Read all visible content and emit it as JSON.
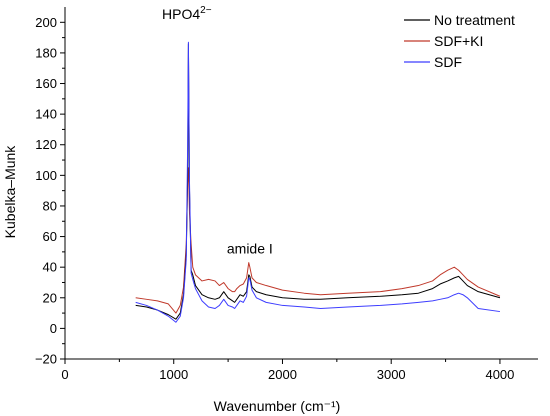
{
  "chart_data": {
    "type": "line",
    "xlabel": "Wavenumber (cm⁻¹)",
    "ylabel": "Kubelka–Munk",
    "xlim": [
      0,
      4350
    ],
    "ylim": [
      -20,
      210
    ],
    "x_ticks": [
      0,
      1000,
      2000,
      3000,
      4000
    ],
    "x_tick_labels": [
      "0",
      "1000",
      "2000",
      "3000",
      "4000"
    ],
    "y_ticks": [
      -20,
      0,
      20,
      40,
      60,
      80,
      100,
      120,
      140,
      160,
      180,
      200
    ],
    "y_tick_labels": [
      "−20",
      "0",
      "20",
      "40",
      "60",
      "80",
      "100",
      "120",
      "140",
      "160",
      "180",
      "200"
    ],
    "grid": false,
    "legend_position": "top-right",
    "annotations": [
      {
        "text": "HPO4",
        "superscript": "2−",
        "x": 1120,
        "y": 202
      },
      {
        "text": "amide I",
        "x": 1700,
        "y": 49
      }
    ],
    "series": [
      {
        "name": "No treatment",
        "color": "#000000",
        "x": [
          650,
          750,
          850,
          950,
          1020,
          1060,
          1090,
          1115,
          1128,
          1135,
          1145,
          1160,
          1175,
          1200,
          1260,
          1320,
          1380,
          1420,
          1460,
          1500,
          1540,
          1560,
          1580,
          1610,
          1640,
          1670,
          1690,
          1700,
          1720,
          1760,
          1850,
          2000,
          2200,
          2350,
          2600,
          2900,
          3100,
          3250,
          3380,
          3450,
          3520,
          3580,
          3620,
          3660,
          3700,
          3800,
          4000
        ],
        "y": [
          15,
          14,
          12,
          9,
          6,
          10,
          22,
          48,
          100,
          186,
          90,
          38,
          35,
          28,
          22,
          20,
          19,
          20,
          24,
          20,
          18,
          17,
          19,
          22,
          21,
          24,
          35,
          34,
          27,
          24,
          22,
          20,
          19,
          19,
          20,
          21,
          22,
          23,
          26,
          29,
          31,
          33,
          34,
          31,
          28,
          24,
          20
        ]
      },
      {
        "name": "SDF+KI",
        "color": "#c0392b",
        "x": [
          650,
          750,
          850,
          950,
          1020,
          1060,
          1090,
          1115,
          1128,
          1135,
          1145,
          1160,
          1175,
          1200,
          1260,
          1320,
          1380,
          1420,
          1460,
          1500,
          1540,
          1560,
          1580,
          1610,
          1640,
          1670,
          1690,
          1700,
          1720,
          1760,
          1850,
          2000,
          2200,
          2350,
          2600,
          2900,
          3100,
          3250,
          3380,
          3450,
          3520,
          3580,
          3620,
          3660,
          3700,
          3800,
          4000
        ],
        "y": [
          20,
          19,
          18,
          16,
          10,
          15,
          27,
          55,
          95,
          105,
          75,
          55,
          40,
          35,
          31,
          32,
          31,
          28,
          30,
          26,
          24,
          24,
          26,
          28,
          29,
          33,
          43,
          40,
          33,
          30,
          28,
          25,
          23,
          22,
          23,
          24,
          26,
          28,
          31,
          35,
          38,
          40,
          38,
          35,
          32,
          27,
          21
        ]
      },
      {
        "name": "SDF",
        "color": "#3d3dff",
        "x": [
          650,
          750,
          850,
          950,
          1020,
          1060,
          1090,
          1115,
          1128,
          1135,
          1145,
          1160,
          1175,
          1200,
          1260,
          1320,
          1380,
          1420,
          1460,
          1500,
          1540,
          1560,
          1580,
          1610,
          1640,
          1670,
          1690,
          1700,
          1720,
          1760,
          1850,
          2000,
          2200,
          2350,
          2600,
          2900,
          3100,
          3250,
          3380,
          3450,
          3520,
          3580,
          3620,
          3660,
          3700,
          3800,
          4000
        ],
        "y": [
          17,
          15,
          12,
          8,
          4,
          8,
          20,
          45,
          120,
          187,
          95,
          36,
          32,
          26,
          18,
          14,
          13,
          15,
          19,
          15,
          14,
          13,
          15,
          18,
          17,
          21,
          33,
          32,
          25,
          20,
          17,
          15,
          14,
          13,
          14,
          15,
          16,
          17,
          18,
          19,
          20,
          22,
          23,
          22,
          20,
          13,
          11
        ]
      }
    ]
  }
}
